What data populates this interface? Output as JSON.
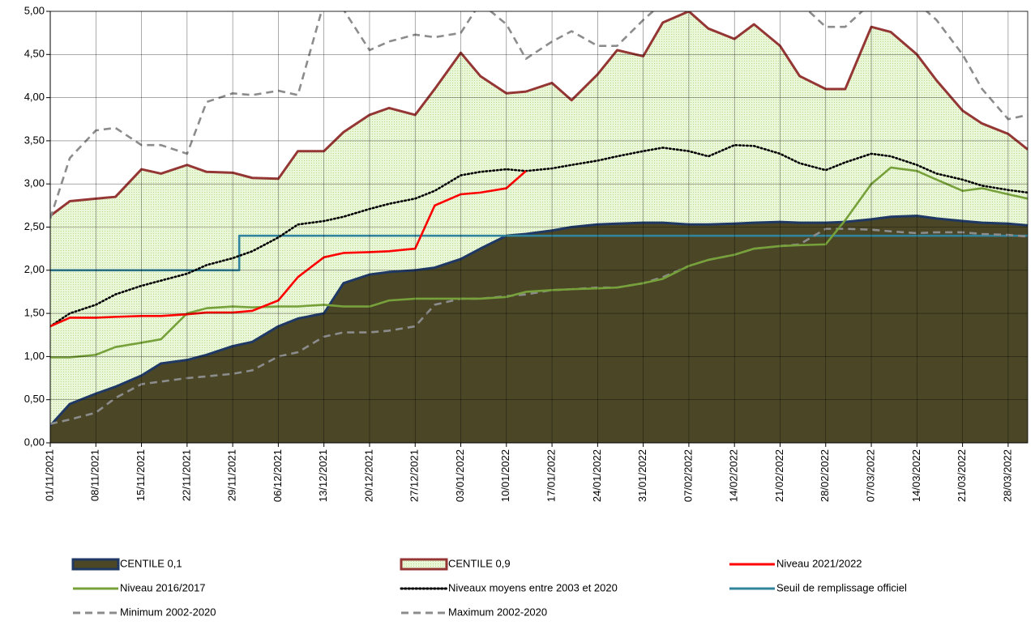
{
  "chart_data": {
    "type": "line",
    "x": [
      "01/11/2021",
      "04/11/2021",
      "08/11/2021",
      "11/11/2021",
      "15/11/2021",
      "18/11/2021",
      "22/11/2021",
      "25/11/2021",
      "29/11/2021",
      "02/12/2021",
      "06/12/2021",
      "09/12/2021",
      "13/12/2021",
      "16/12/2021",
      "20/12/2021",
      "23/12/2021",
      "27/12/2021",
      "30/12/2021",
      "03/01/2022",
      "06/01/2022",
      "10/01/2022",
      "13/01/2022",
      "17/01/2022",
      "20/01/2022",
      "24/01/2022",
      "27/01/2022",
      "31/01/2022",
      "03/02/2022",
      "07/02/2022",
      "10/02/2022",
      "14/02/2022",
      "17/02/2022",
      "21/02/2022",
      "24/02/2022",
      "28/02/2022",
      "03/03/2022",
      "07/03/2022",
      "10/03/2022",
      "14/03/2022",
      "17/03/2022",
      "21/03/2022",
      "24/03/2022",
      "28/03/2022",
      "31/03/2022"
    ],
    "xlim": [
      "01/11/2021",
      "31/03/2022"
    ],
    "xticks": [
      "01/11/2021",
      "08/11/2021",
      "15/11/2021",
      "22/11/2021",
      "29/11/2021",
      "06/12/2021",
      "13/12/2021",
      "20/12/2021",
      "27/12/2021",
      "03/01/2022",
      "10/01/2022",
      "17/01/2022",
      "24/01/2022",
      "31/01/2022",
      "07/02/2022",
      "14/02/2022",
      "21/02/2022",
      "28/02/2022",
      "07/03/2022",
      "14/03/2022",
      "21/03/2022",
      "28/03/2022"
    ],
    "ylim": [
      0,
      5
    ],
    "yticks": [
      {
        "value": 0,
        "label": "0,00"
      },
      {
        "value": 0.5,
        "label": "0,50"
      },
      {
        "value": 1,
        "label": "1,00"
      },
      {
        "value": 1.5,
        "label": "1,50"
      },
      {
        "value": 2,
        "label": "2,00"
      },
      {
        "value": 2.5,
        "label": "2,50"
      },
      {
        "value": 3,
        "label": "3,00"
      },
      {
        "value": 3.5,
        "label": "3,50"
      },
      {
        "value": 4,
        "label": "4,00"
      },
      {
        "value": 4.5,
        "label": "4,50"
      },
      {
        "value": 5,
        "label": "5,00"
      }
    ],
    "grid": true,
    "series": [
      {
        "name": "CENTILE 0,1",
        "color": "#1f3864",
        "fill": "#4a4626",
        "area": true,
        "dash": "solid",
        "values": [
          0.2,
          0.45,
          0.57,
          0.65,
          0.78,
          0.92,
          0.96,
          1.02,
          1.12,
          1.17,
          1.35,
          1.44,
          1.5,
          1.85,
          1.95,
          1.98,
          2.0,
          2.03,
          2.13,
          2.25,
          2.4,
          2.42,
          2.46,
          2.5,
          2.53,
          2.54,
          2.55,
          2.55,
          2.53,
          2.53,
          2.54,
          2.55,
          2.56,
          2.55,
          2.55,
          2.56,
          2.59,
          2.62,
          2.63,
          2.6,
          2.57,
          2.55,
          2.54,
          2.52
        ]
      },
      {
        "name": "CENTILE 0,9",
        "color": "#943634",
        "fill": "#e4f3cf",
        "area": true,
        "dash": "solid",
        "values": [
          2.63,
          2.8,
          2.83,
          2.85,
          3.17,
          3.12,
          3.22,
          3.14,
          3.13,
          3.07,
          3.06,
          3.38,
          3.38,
          3.6,
          3.8,
          3.88,
          3.8,
          4.1,
          4.52,
          4.25,
          4.05,
          4.07,
          4.17,
          3.97,
          4.27,
          4.55,
          4.48,
          4.87,
          5.0,
          4.8,
          4.68,
          4.85,
          4.6,
          4.25,
          4.1,
          4.1,
          4.82,
          4.76,
          4.5,
          4.2,
          3.85,
          3.7,
          3.58,
          3.4
        ]
      },
      {
        "name": "Niveau 2021/2022",
        "color": "#ff0000",
        "dash": "solid",
        "values": [
          1.35,
          1.45,
          1.45,
          1.46,
          1.47,
          1.47,
          1.49,
          1.51,
          1.51,
          1.53,
          1.65,
          1.92,
          2.15,
          2.2,
          2.21,
          2.22,
          2.25,
          2.75,
          2.88,
          2.9,
          2.95,
          3.15,
          null,
          null,
          null,
          null,
          null,
          null,
          null,
          null,
          null,
          null,
          null,
          null,
          null,
          null,
          null,
          null,
          null,
          null,
          null,
          null,
          null,
          null
        ]
      },
      {
        "name": "Niveau 2016/2017",
        "color": "#77a13b",
        "dash": "solid",
        "values": [
          0.99,
          0.99,
          1.02,
          1.11,
          1.16,
          1.2,
          1.5,
          1.56,
          1.58,
          1.57,
          1.58,
          1.58,
          1.6,
          1.58,
          1.58,
          1.65,
          1.67,
          1.67,
          1.67,
          1.67,
          1.69,
          1.75,
          1.77,
          1.78,
          1.79,
          1.8,
          1.85,
          1.9,
          2.05,
          2.12,
          2.18,
          2.25,
          2.28,
          2.29,
          2.3,
          2.58,
          3.0,
          3.19,
          3.15,
          3.05,
          2.92,
          2.95,
          2.88,
          2.83
        ]
      },
      {
        "name": "Niveaux moyens entre 2003 et 2020",
        "color": "#000000",
        "dash": "dotted",
        "values": [
          1.35,
          1.5,
          1.6,
          1.72,
          1.82,
          1.88,
          1.96,
          2.06,
          2.14,
          2.22,
          2.38,
          2.53,
          2.57,
          2.62,
          2.71,
          2.77,
          2.83,
          2.92,
          3.1,
          3.14,
          3.17,
          3.15,
          3.18,
          3.22,
          3.27,
          3.32,
          3.38,
          3.42,
          3.38,
          3.32,
          3.45,
          3.44,
          3.35,
          3.24,
          3.16,
          3.25,
          3.35,
          3.32,
          3.22,
          3.12,
          3.05,
          2.98,
          2.93,
          2.9
        ]
      },
      {
        "name": "Seuil de remplissage officiel",
        "color": "#31849b",
        "dash": "solid",
        "x": [
          "01/11/2021",
          "30/11/2021",
          "30/11/2021",
          "31/03/2022"
        ],
        "values": [
          2,
          2,
          2.4,
          2.4
        ]
      },
      {
        "name": "Minimum 2002-2020",
        "color": "#8c8c8c",
        "dash": "dashed",
        "values": [
          0.22,
          0.27,
          0.35,
          0.52,
          0.68,
          0.71,
          0.75,
          0.77,
          0.8,
          0.84,
          1.0,
          1.05,
          1.23,
          1.28,
          1.28,
          1.3,
          1.35,
          1.6,
          1.67,
          1.67,
          1.7,
          1.72,
          1.77,
          1.78,
          1.8,
          1.8,
          1.85,
          1.92,
          2.05,
          2.12,
          2.18,
          2.25,
          2.28,
          2.3,
          2.48,
          2.48,
          2.47,
          2.45,
          2.43,
          2.44,
          2.44,
          2.42,
          2.41,
          2.39
        ]
      },
      {
        "name": "Maximum 2002-2020",
        "color": "#8c8c8c",
        "dash": "dashed",
        "values": [
          2.6,
          3.3,
          3.62,
          3.65,
          3.45,
          3.45,
          3.35,
          3.95,
          4.05,
          4.03,
          4.08,
          4.03,
          5.1,
          5.02,
          4.55,
          4.65,
          4.73,
          4.7,
          4.75,
          5.1,
          4.85,
          4.45,
          4.65,
          4.77,
          4.6,
          4.6,
          4.9,
          5.1,
          5.1,
          5.1,
          5.1,
          5.1,
          5.1,
          5.1,
          4.82,
          4.82,
          5.1,
          5.1,
          5.1,
          4.9,
          4.5,
          4.1,
          3.75,
          3.8
        ]
      }
    ]
  }
}
